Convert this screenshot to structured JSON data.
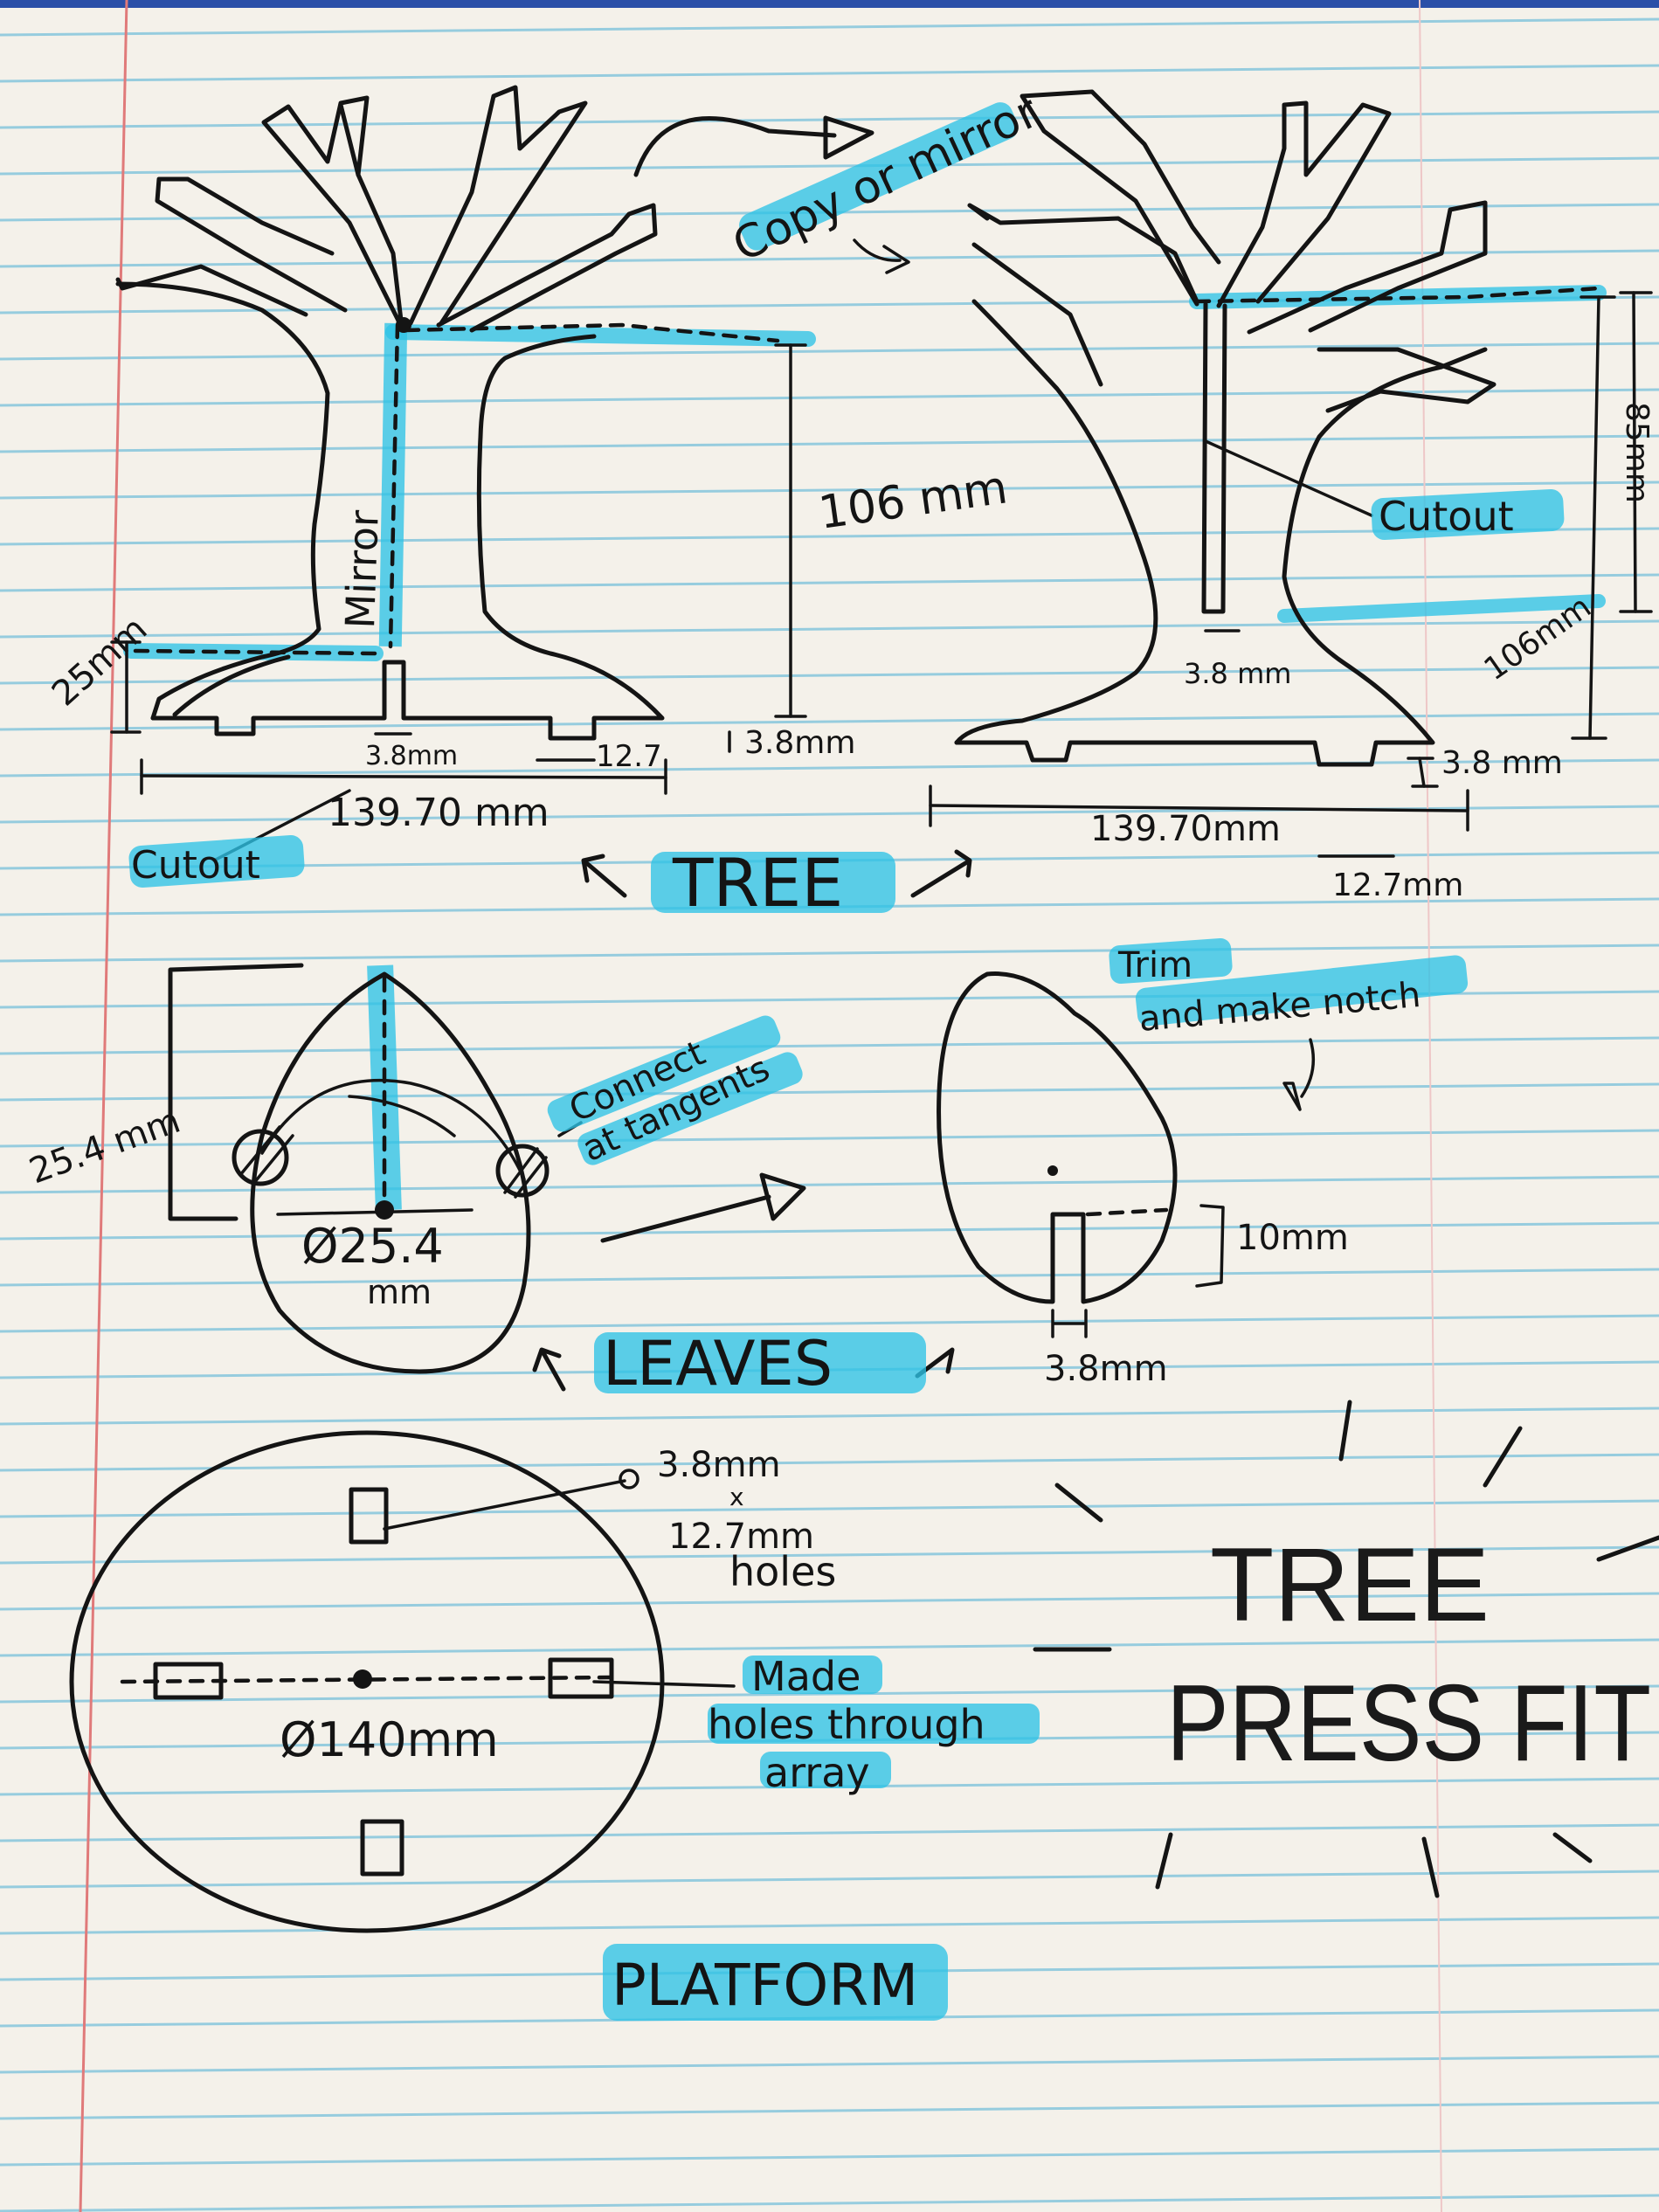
{
  "labels": {
    "copy_or_mirror": "Copy or mirror",
    "mirror": "Mirror",
    "dim_106_left": "106 mm",
    "dim_25": "25mm",
    "dim_3_8_left": "3.8mm",
    "dim_12_7_left": "12.7",
    "dim_3_8_base_left": "3.8mm",
    "dim_139_left": "139.70 mm",
    "cutout_left": "Cutout",
    "tree": "TREE",
    "cutout_right": "Cutout",
    "dim_85": "85mm",
    "dim_106_right": "106mm",
    "dim_3_8_right": "3.8 mm",
    "dim_3_8_base_right": "3.8 mm",
    "dim_139_right": "139.70mm",
    "dim_12_7_right": "12.7mm",
    "dim_25_4_left": "25.4 mm",
    "connect_line1": "Connect",
    "connect_line2": "at tangents",
    "dia_25_4": "Ø25.4",
    "dia_25_4_unit": "mm",
    "trim_line1": "Trim",
    "trim_line2": "and make notch",
    "dim_10": "10mm",
    "dim_3_8_leaf": "3.8mm",
    "leaves": "LEAVES",
    "holes_line1": "3.8mm",
    "holes_line2": "x",
    "holes_line3": "12.7mm",
    "holes_line4": "holes",
    "dia_140": "Ø140mm",
    "made_line1": "Made",
    "made_line2": "holes through",
    "made_line3": "array",
    "platform": "PLATFORM",
    "title_line1": "TREE",
    "title_line2": "PRESS FIT"
  },
  "colors": {
    "paper": "#f4f1ea",
    "rule_line": "#7fc4dc",
    "margin_line": "#e07a7a",
    "highlighter": "#2ec3e6",
    "ink": "#141414",
    "desk": "#2a4fa8"
  }
}
